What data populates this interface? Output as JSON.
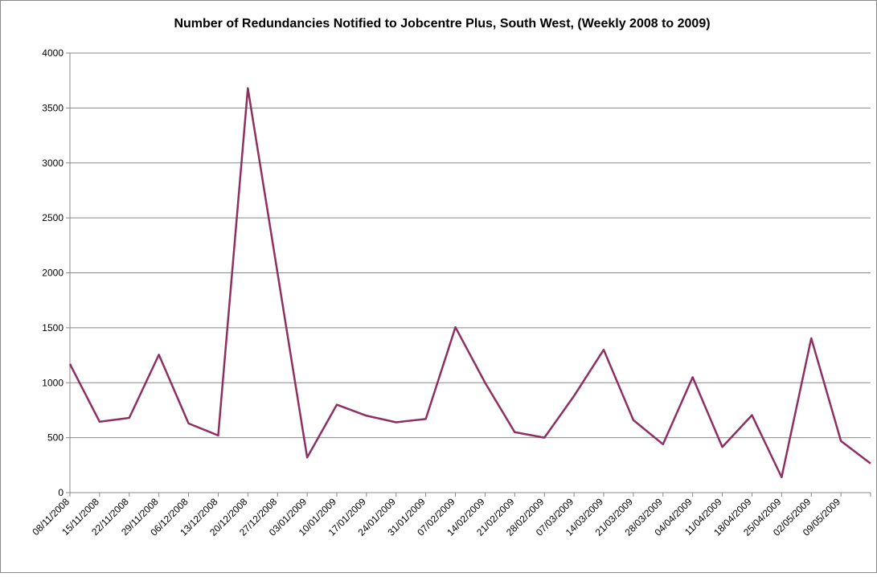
{
  "chart_data": {
    "type": "line",
    "title": "Number of Redundancies Notified to Jobcentre Plus, South West, (Weekly 2008 to 2009)",
    "categories": [
      "08/11/2008",
      "15/11/2008",
      "22/11/2008",
      "29/11/2008",
      "06/12/2008",
      "13/12/2008",
      "20/12/2008",
      "27/12/2008",
      "03/01/2009",
      "10/01/2009",
      "17/01/2009",
      "24/01/2009",
      "31/01/2009",
      "07/02/2009",
      "14/02/2009",
      "21/02/2009",
      "28/02/2009",
      "07/03/2009",
      "14/03/2009",
      "21/03/2009",
      "28/03/2009",
      "04/04/2009",
      "11/04/2009",
      "18/04/2009",
      "25/04/2009",
      "02/05/2009",
      "09/05/2009",
      null
    ],
    "series": [
      {
        "name": "Redundancies",
        "color": "#8e2f62",
        "values": [
          1170,
          645,
          680,
          1255,
          630,
          520,
          3680,
          2000,
          320,
          800,
          700,
          640,
          670,
          1505,
          1000,
          550,
          500,
          880,
          1300,
          660,
          440,
          1050,
          415,
          705,
          140,
          1405,
          470,
          265
        ]
      }
    ],
    "ylim": [
      0,
      4000
    ],
    "yticks": [
      0,
      500,
      1000,
      1500,
      2000,
      2500,
      3000,
      3500,
      4000
    ],
    "grid": true
  }
}
